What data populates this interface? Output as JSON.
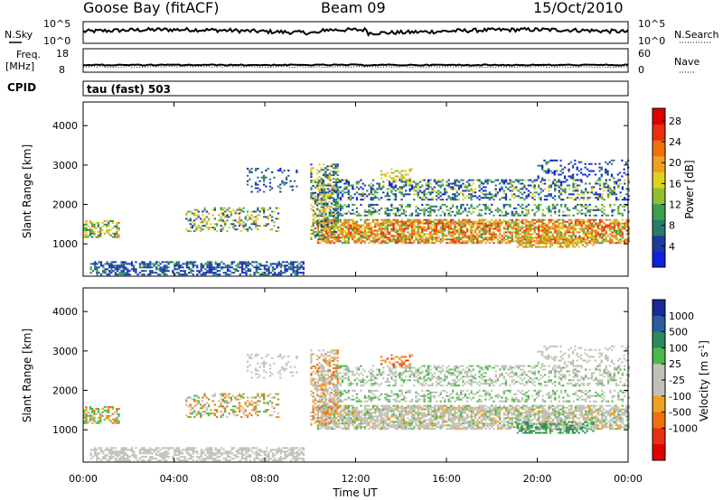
{
  "header": {
    "station": "Goose Bay (fitACF)",
    "beam": "Beam 09",
    "date": "15/Oct/2010"
  },
  "noise_panel": {
    "left_label": "N.Sky",
    "right_label": "N.Search",
    "left_ticks": [
      "10^5",
      "10^0"
    ],
    "right_ticks": [
      "10^5",
      "10^0"
    ]
  },
  "freq_panel": {
    "left_label_line1": "Freq.",
    "left_label_line2": "[MHz]",
    "right_label": "Nave",
    "left_ticks": [
      "18",
      "8"
    ],
    "right_ticks": [
      "60",
      "0"
    ]
  },
  "cpid": {
    "label": "CPID",
    "value": "tau (fast) 503"
  },
  "colors": {
    "power_scale": [
      "#1020e0",
      "#1a3aa0",
      "#2a7a6a",
      "#3aa04a",
      "#90c030",
      "#e0d020",
      "#f0a020",
      "#f07010",
      "#e83010",
      "#e00000"
    ],
    "velocity_scale": [
      "#1a2a9a",
      "#2a5aa0",
      "#2a8a5a",
      "#4ab84a",
      "#c0c0b8",
      "#c0c0b8",
      "#f0a020",
      "#f07010",
      "#e83010",
      "#e00000"
    ]
  },
  "chart_data": [
    {
      "type": "line",
      "title": "N.Sky / N.Search",
      "x_range_hours": [
        0,
        24
      ],
      "ylim_log10": [
        0,
        5
      ],
      "series": [
        {
          "name": "N.Sky",
          "values_log10_level": "approximately 2 to 3 across the day"
        }
      ]
    },
    {
      "type": "line",
      "title": "Freq / Nave",
      "x_range_hours": [
        0,
        24
      ],
      "series": [
        {
          "name": "Freq.",
          "value_mhz_approx": 11
        }
      ]
    },
    {
      "type": "heatmap",
      "colorbar_label": "Power [dB]",
      "colorbar_ticks": [
        4,
        8,
        12,
        16,
        20,
        24,
        28
      ],
      "ylabel": "Slant Range [km]",
      "y_ticks": [
        1000,
        2000,
        3000,
        4000
      ],
      "ylim": [
        180,
        4600
      ],
      "x_ticks": [
        "00:00",
        "04:00",
        "08:00",
        "12:00",
        "16:00",
        "20:00",
        "00:00"
      ],
      "scatter_regions": [
        {
          "t_start": 0.0,
          "t_end": 1.5,
          "r_start": 1150,
          "r_end": 1600,
          "level": "mid-high"
        },
        {
          "t_start": 4.5,
          "t_end": 8.5,
          "r_start": 1300,
          "r_end": 1900,
          "level": "mid"
        },
        {
          "t_start": 10.3,
          "t_end": 24.0,
          "r_start": 1000,
          "r_end": 1600,
          "level": "high"
        },
        {
          "t_start": 10.3,
          "t_end": 24.0,
          "r_start": 2100,
          "r_end": 2600,
          "level": "low-mid"
        },
        {
          "t_start": 0.3,
          "t_end": 9.7,
          "r_start": 200,
          "r_end": 500,
          "level": "low"
        }
      ]
    },
    {
      "type": "heatmap",
      "colorbar_label": "Velocity [m s^-1]",
      "colorbar_ticks": [
        1000,
        500,
        100,
        25,
        -25,
        -100,
        -500,
        -1000
      ],
      "ylabel": "Slant Range [km]",
      "y_ticks": [
        1000,
        2000,
        3000,
        4000
      ],
      "ylim": [
        180,
        4600
      ],
      "xlabel": "Time UT",
      "x_ticks": [
        "00:00",
        "04:00",
        "08:00",
        "12:00",
        "16:00",
        "20:00",
        "00:00"
      ]
    }
  ],
  "axes": {
    "xlabel": "Time UT",
    "ylabel": "Slant Range [km]",
    "x_ticks": [
      "00:00",
      "04:00",
      "08:00",
      "12:00",
      "16:00",
      "20:00",
      "00:00"
    ],
    "y_ticks": [
      "1000",
      "2000",
      "3000",
      "4000"
    ],
    "power_label": "Power [dB]",
    "power_ticks": [
      "4",
      "8",
      "12",
      "16",
      "20",
      "24",
      "28"
    ],
    "velocity_label": "Velocity [m s",
    "velocity_label_sup": "-1",
    "velocity_label_end": "]",
    "velocity_ticks": [
      "1000",
      "500",
      "100",
      "25",
      "-25",
      "-100",
      "-500",
      "-1000"
    ]
  }
}
